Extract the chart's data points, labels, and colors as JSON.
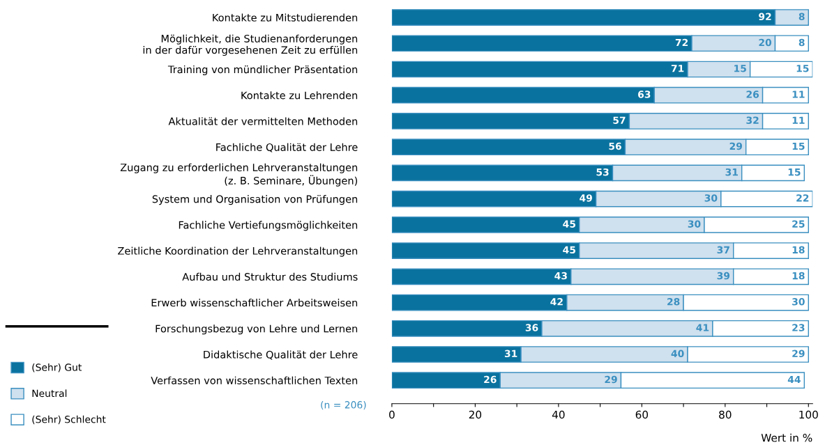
{
  "chart_data": {
    "type": "bar",
    "orientation": "horizontal",
    "stacked": true,
    "categories": [
      "Kontakte zu Mitstudierenden",
      "Möglichkeit, die Studienanforderungen\nin der dafür vorgesehenen Zeit zu erfüllen",
      "Training von mündlicher Präsentation",
      "Kontakte zu Lehrenden",
      "Aktualität der vermittelten Methoden",
      "Fachliche Qualität der Lehre",
      "Zugang zu erforderlichen Lehrveranstaltungen\n(z. B. Seminare, Übungen)",
      "System und Organisation von Prüfungen",
      "Fachliche Vertiefungsmöglichkeiten",
      "Zeitliche Koordination der Lehrveranstaltungen",
      "Aufbau und Struktur des Studiums",
      "Erwerb wissenschaftlicher Arbeitsweisen",
      "Forschungsbezug von Lehre und Lernen",
      "Didaktische Qualität der Lehre",
      "Verfassen von wissenschaftlichen Texten"
    ],
    "series": [
      {
        "name": "(Sehr) Gut",
        "color": "#0a729e",
        "values": [
          92,
          72,
          71,
          63,
          57,
          56,
          53,
          49,
          45,
          45,
          43,
          42,
          36,
          31,
          26
        ]
      },
      {
        "name": "Neutral",
        "color": "#cfe0ee",
        "values": [
          8,
          20,
          15,
          26,
          32,
          29,
          31,
          30,
          30,
          37,
          39,
          28,
          41,
          40,
          29
        ]
      },
      {
        "name": "(Sehr) Schlecht",
        "color": "#ffffff",
        "values": [
          null,
          8,
          15,
          11,
          11,
          15,
          15,
          22,
          25,
          18,
          18,
          30,
          23,
          29,
          44
        ]
      }
    ],
    "data_labels": true,
    "xlim": [
      0,
      101
    ],
    "xticks": [
      0,
      {
        "value": 10,
        "label": null
      },
      20,
      {
        "value": 30,
        "label": null
      },
      40,
      {
        "value": 50,
        "label": null
      },
      60,
      {
        "value": 70,
        "label": null
      },
      80,
      {
        "value": 90,
        "label": null
      },
      100
    ],
    "xlabel": "Wert in %",
    "annotations": [
      "(n = 206)"
    ],
    "legend": "bottom left"
  }
}
